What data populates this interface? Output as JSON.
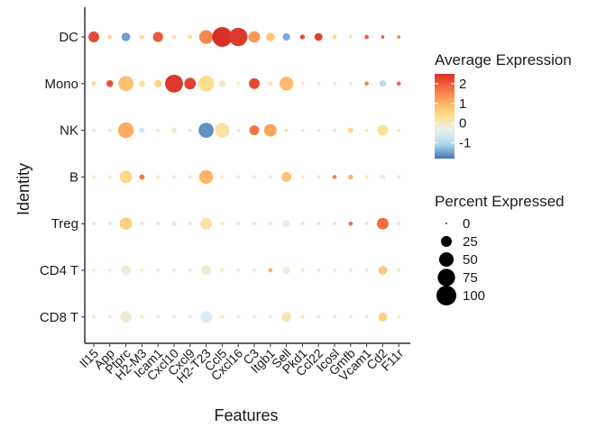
{
  "chart_data": {
    "type": "dotplot",
    "xlabel": "Features",
    "ylabel": "Identity",
    "features": [
      "Il15",
      "App",
      "Ptprc",
      "H2-M3",
      "Icam1",
      "Cxcl10",
      "Cxcl9",
      "H2-T23",
      "Ccl5",
      "Cxcl16",
      "C3",
      "Itgb1",
      "Sell",
      "Pkd1",
      "Ccl22",
      "Icosl",
      "Gmfb",
      "Vcam1",
      "Cd2",
      "F11r"
    ],
    "identities": [
      "DC",
      "Mono",
      "NK",
      "B",
      "Treg",
      "CD4 T",
      "CD8 T"
    ],
    "color_legend": {
      "title": "Average Expression",
      "ticks": [
        2,
        1,
        0,
        -1
      ],
      "range": [
        -1.8,
        2.5
      ],
      "colors": [
        "#4575b4",
        "#abd9e9",
        "#e8f0f4",
        "#fee090",
        "#fdae61",
        "#f46d43",
        "#d73027"
      ]
    },
    "size_legend": {
      "title": "Percent Expressed",
      "ticks": [
        0,
        25,
        50,
        75,
        100
      ]
    },
    "points": [
      {
        "identity": "DC",
        "values": [
          [
            2.2,
            25
          ],
          [
            0.5,
            2
          ],
          [
            -1.5,
            15
          ],
          [
            0.3,
            3
          ],
          [
            2.0,
            22
          ],
          [
            0,
            3
          ],
          [
            0.3,
            3
          ],
          [
            1.5,
            45
          ],
          [
            2.5,
            100
          ],
          [
            2.4,
            85
          ],
          [
            1.3,
            30
          ],
          [
            0.7,
            15
          ],
          [
            -1.4,
            10
          ],
          [
            2.2,
            3
          ],
          [
            2.3,
            12
          ],
          [
            0.5,
            2
          ],
          [
            0.3,
            1
          ],
          [
            2.0,
            2
          ],
          [
            2.0,
            1
          ],
          [
            1.5,
            1
          ]
        ]
      },
      {
        "identity": "Mono",
        "values": [
          [
            0.5,
            2
          ],
          [
            2.1,
            8
          ],
          [
            0.8,
            55
          ],
          [
            0.4,
            5
          ],
          [
            0.5,
            10
          ],
          [
            2.4,
            80
          ],
          [
            2.3,
            30
          ],
          [
            0.4,
            60
          ],
          [
            -0.1,
            10
          ],
          [
            0,
            1
          ],
          [
            2.2,
            25
          ],
          [
            0,
            2
          ],
          [
            0.9,
            45
          ],
          [
            0,
            1
          ],
          [
            0,
            1
          ],
          [
            0,
            1
          ],
          [
            0,
            1
          ],
          [
            1.5,
            2
          ],
          [
            -0.9,
            8
          ],
          [
            1.8,
            2
          ]
        ]
      },
      {
        "identity": "NK",
        "values": [
          [
            0,
            1
          ],
          [
            0,
            1
          ],
          [
            1.1,
            60
          ],
          [
            -0.7,
            4
          ],
          [
            0,
            1
          ],
          [
            -0.1,
            4
          ],
          [
            0,
            1
          ],
          [
            -1.6,
            55
          ],
          [
            0.2,
            50
          ],
          [
            0,
            1
          ],
          [
            1.7,
            20
          ],
          [
            1.2,
            35
          ],
          [
            0.3,
            1
          ],
          [
            0,
            1
          ],
          [
            0,
            1
          ],
          [
            0,
            1
          ],
          [
            0.5,
            4
          ],
          [
            0,
            1
          ],
          [
            0.3,
            25
          ],
          [
            0,
            1
          ]
        ]
      },
      {
        "identity": "B",
        "values": [
          [
            0,
            1
          ],
          [
            0,
            1
          ],
          [
            0.5,
            35
          ],
          [
            1.7,
            4
          ],
          [
            0,
            1
          ],
          [
            0,
            1
          ],
          [
            0,
            1
          ],
          [
            1.0,
            45
          ],
          [
            0,
            1
          ],
          [
            0,
            1
          ],
          [
            0,
            1
          ],
          [
            0,
            1
          ],
          [
            0.8,
            20
          ],
          [
            0,
            1
          ],
          [
            0,
            1
          ],
          [
            1.6,
            2
          ],
          [
            1.0,
            3
          ],
          [
            0,
            1
          ],
          [
            -0.2,
            4
          ],
          [
            0,
            1
          ]
        ]
      },
      {
        "identity": "Treg",
        "values": [
          [
            0,
            1
          ],
          [
            0,
            1
          ],
          [
            0.6,
            35
          ],
          [
            0,
            1
          ],
          [
            0,
            1
          ],
          [
            -0.1,
            3
          ],
          [
            0,
            1
          ],
          [
            0.2,
            30
          ],
          [
            0,
            1
          ],
          [
            0,
            1
          ],
          [
            0,
            1
          ],
          [
            0,
            1
          ],
          [
            -0.2,
            10
          ],
          [
            0,
            1
          ],
          [
            0,
            1
          ],
          [
            0,
            1
          ],
          [
            1.8,
            2
          ],
          [
            0,
            1
          ],
          [
            1.8,
            30
          ],
          [
            0,
            1
          ]
        ]
      },
      {
        "identity": "CD4 T",
        "values": [
          [
            0,
            1
          ],
          [
            0,
            1
          ],
          [
            -0.2,
            20
          ],
          [
            0,
            1
          ],
          [
            0,
            1
          ],
          [
            0,
            1
          ],
          [
            0,
            1
          ],
          [
            -0.1,
            20
          ],
          [
            0,
            1
          ],
          [
            0,
            1
          ],
          [
            0,
            1
          ],
          [
            1.0,
            2
          ],
          [
            -0.2,
            10
          ],
          [
            0,
            1
          ],
          [
            0,
            1
          ],
          [
            0,
            1
          ],
          [
            0,
            1
          ],
          [
            0,
            1
          ],
          [
            0.7,
            15
          ],
          [
            0,
            1
          ]
        ]
      },
      {
        "identity": "CD8 T",
        "values": [
          [
            0,
            1
          ],
          [
            0,
            1
          ],
          [
            -0.1,
            30
          ],
          [
            0,
            1
          ],
          [
            0,
            1
          ],
          [
            0,
            1
          ],
          [
            0,
            1
          ],
          [
            -0.5,
            30
          ],
          [
            0,
            1
          ],
          [
            0,
            1
          ],
          [
            0,
            1
          ],
          [
            0,
            1
          ],
          [
            0.1,
            20
          ],
          [
            0,
            1
          ],
          [
            0,
            1
          ],
          [
            0,
            1
          ],
          [
            0,
            1
          ],
          [
            0,
            1
          ],
          [
            0.6,
            15
          ],
          [
            0,
            1
          ]
        ]
      }
    ]
  }
}
